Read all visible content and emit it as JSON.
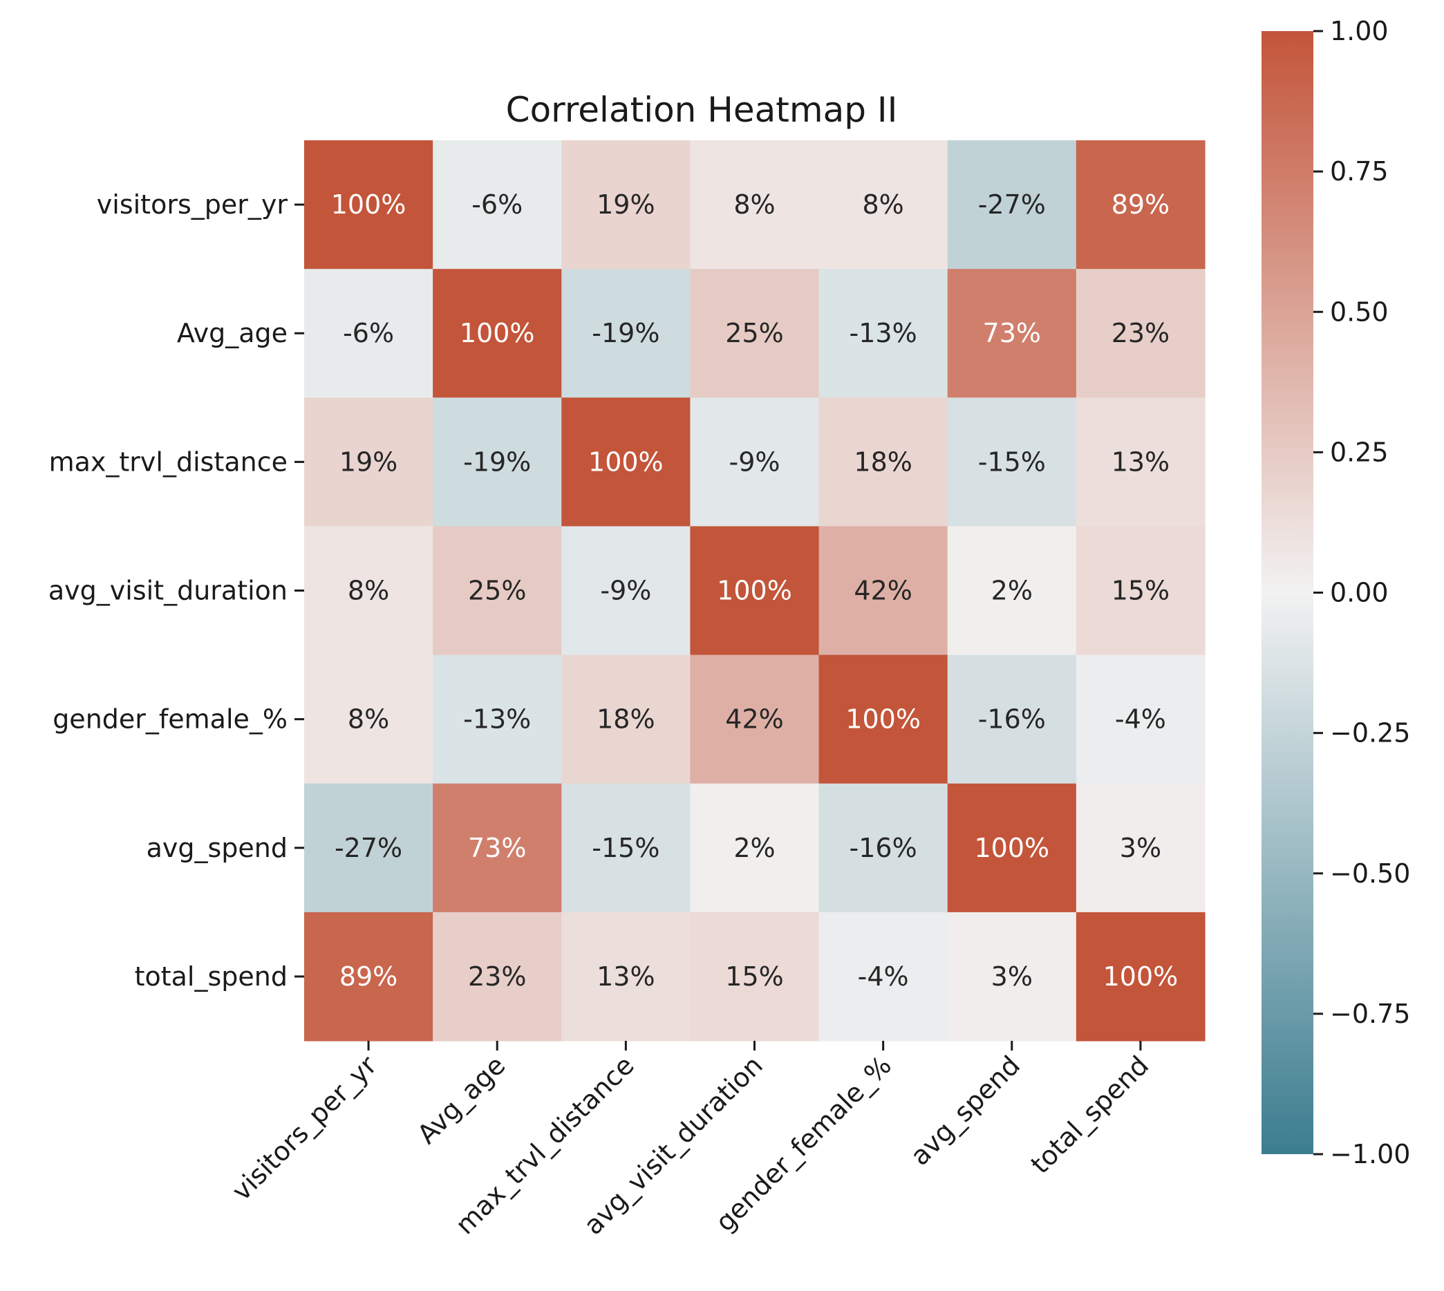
{
  "chart_data": {
    "type": "heatmap",
    "title": "Correlation Heatmap II",
    "xlabel": "",
    "ylabel": "",
    "labels": [
      "visitors_per_yr",
      "Avg_age",
      "max_trvl_distance",
      "avg_visit_duration",
      "gender_female_%",
      "avg_spend",
      "total_spend"
    ],
    "values": [
      [
        1.0,
        -0.06,
        0.19,
        0.08,
        0.08,
        -0.27,
        0.89
      ],
      [
        -0.06,
        1.0,
        -0.19,
        0.25,
        -0.13,
        0.73,
        0.23
      ],
      [
        0.19,
        -0.19,
        1.0,
        -0.09,
        0.18,
        -0.15,
        0.13
      ],
      [
        0.08,
        0.25,
        -0.09,
        1.0,
        0.42,
        0.02,
        0.15
      ],
      [
        0.08,
        -0.13,
        0.18,
        0.42,
        1.0,
        -0.16,
        -0.04
      ],
      [
        -0.27,
        0.73,
        -0.15,
        0.02,
        -0.16,
        1.0,
        0.03
      ],
      [
        0.89,
        0.23,
        0.13,
        0.15,
        -0.04,
        0.03,
        1.0
      ]
    ],
    "annotations": [
      [
        "100%",
        "-6%",
        "19%",
        "8%",
        "8%",
        "-27%",
        "89%"
      ],
      [
        "-6%",
        "100%",
        "-19%",
        "25%",
        "-13%",
        "73%",
        "23%"
      ],
      [
        "19%",
        "-19%",
        "100%",
        "-9%",
        "18%",
        "-15%",
        "13%"
      ],
      [
        "8%",
        "25%",
        "-9%",
        "100%",
        "42%",
        "2%",
        "15%"
      ],
      [
        "8%",
        "-13%",
        "18%",
        "42%",
        "100%",
        "-16%",
        "-4%"
      ],
      [
        "-27%",
        "73%",
        "-15%",
        "2%",
        "-16%",
        "100%",
        "3%"
      ],
      [
        "89%",
        "23%",
        "13%",
        "15%",
        "-4%",
        "3%",
        "100%"
      ]
    ],
    "colorbar": {
      "range": [
        -1.0,
        1.0
      ],
      "ticks": [
        1.0,
        0.75,
        0.5,
        0.25,
        0.0,
        -0.25,
        -0.5,
        -0.75,
        -1.0
      ],
      "tick_labels": [
        "1.00",
        "0.75",
        "0.50",
        "0.25",
        "0.00",
        "−0.25",
        "−0.50",
        "−0.75",
        "−1.00"
      ]
    },
    "colors": {
      "negative": "#3b7d8f",
      "center": "#f2f2f2",
      "positive": "#c3553a",
      "text_dark": "#262626",
      "text_light": "#ffffff"
    }
  }
}
